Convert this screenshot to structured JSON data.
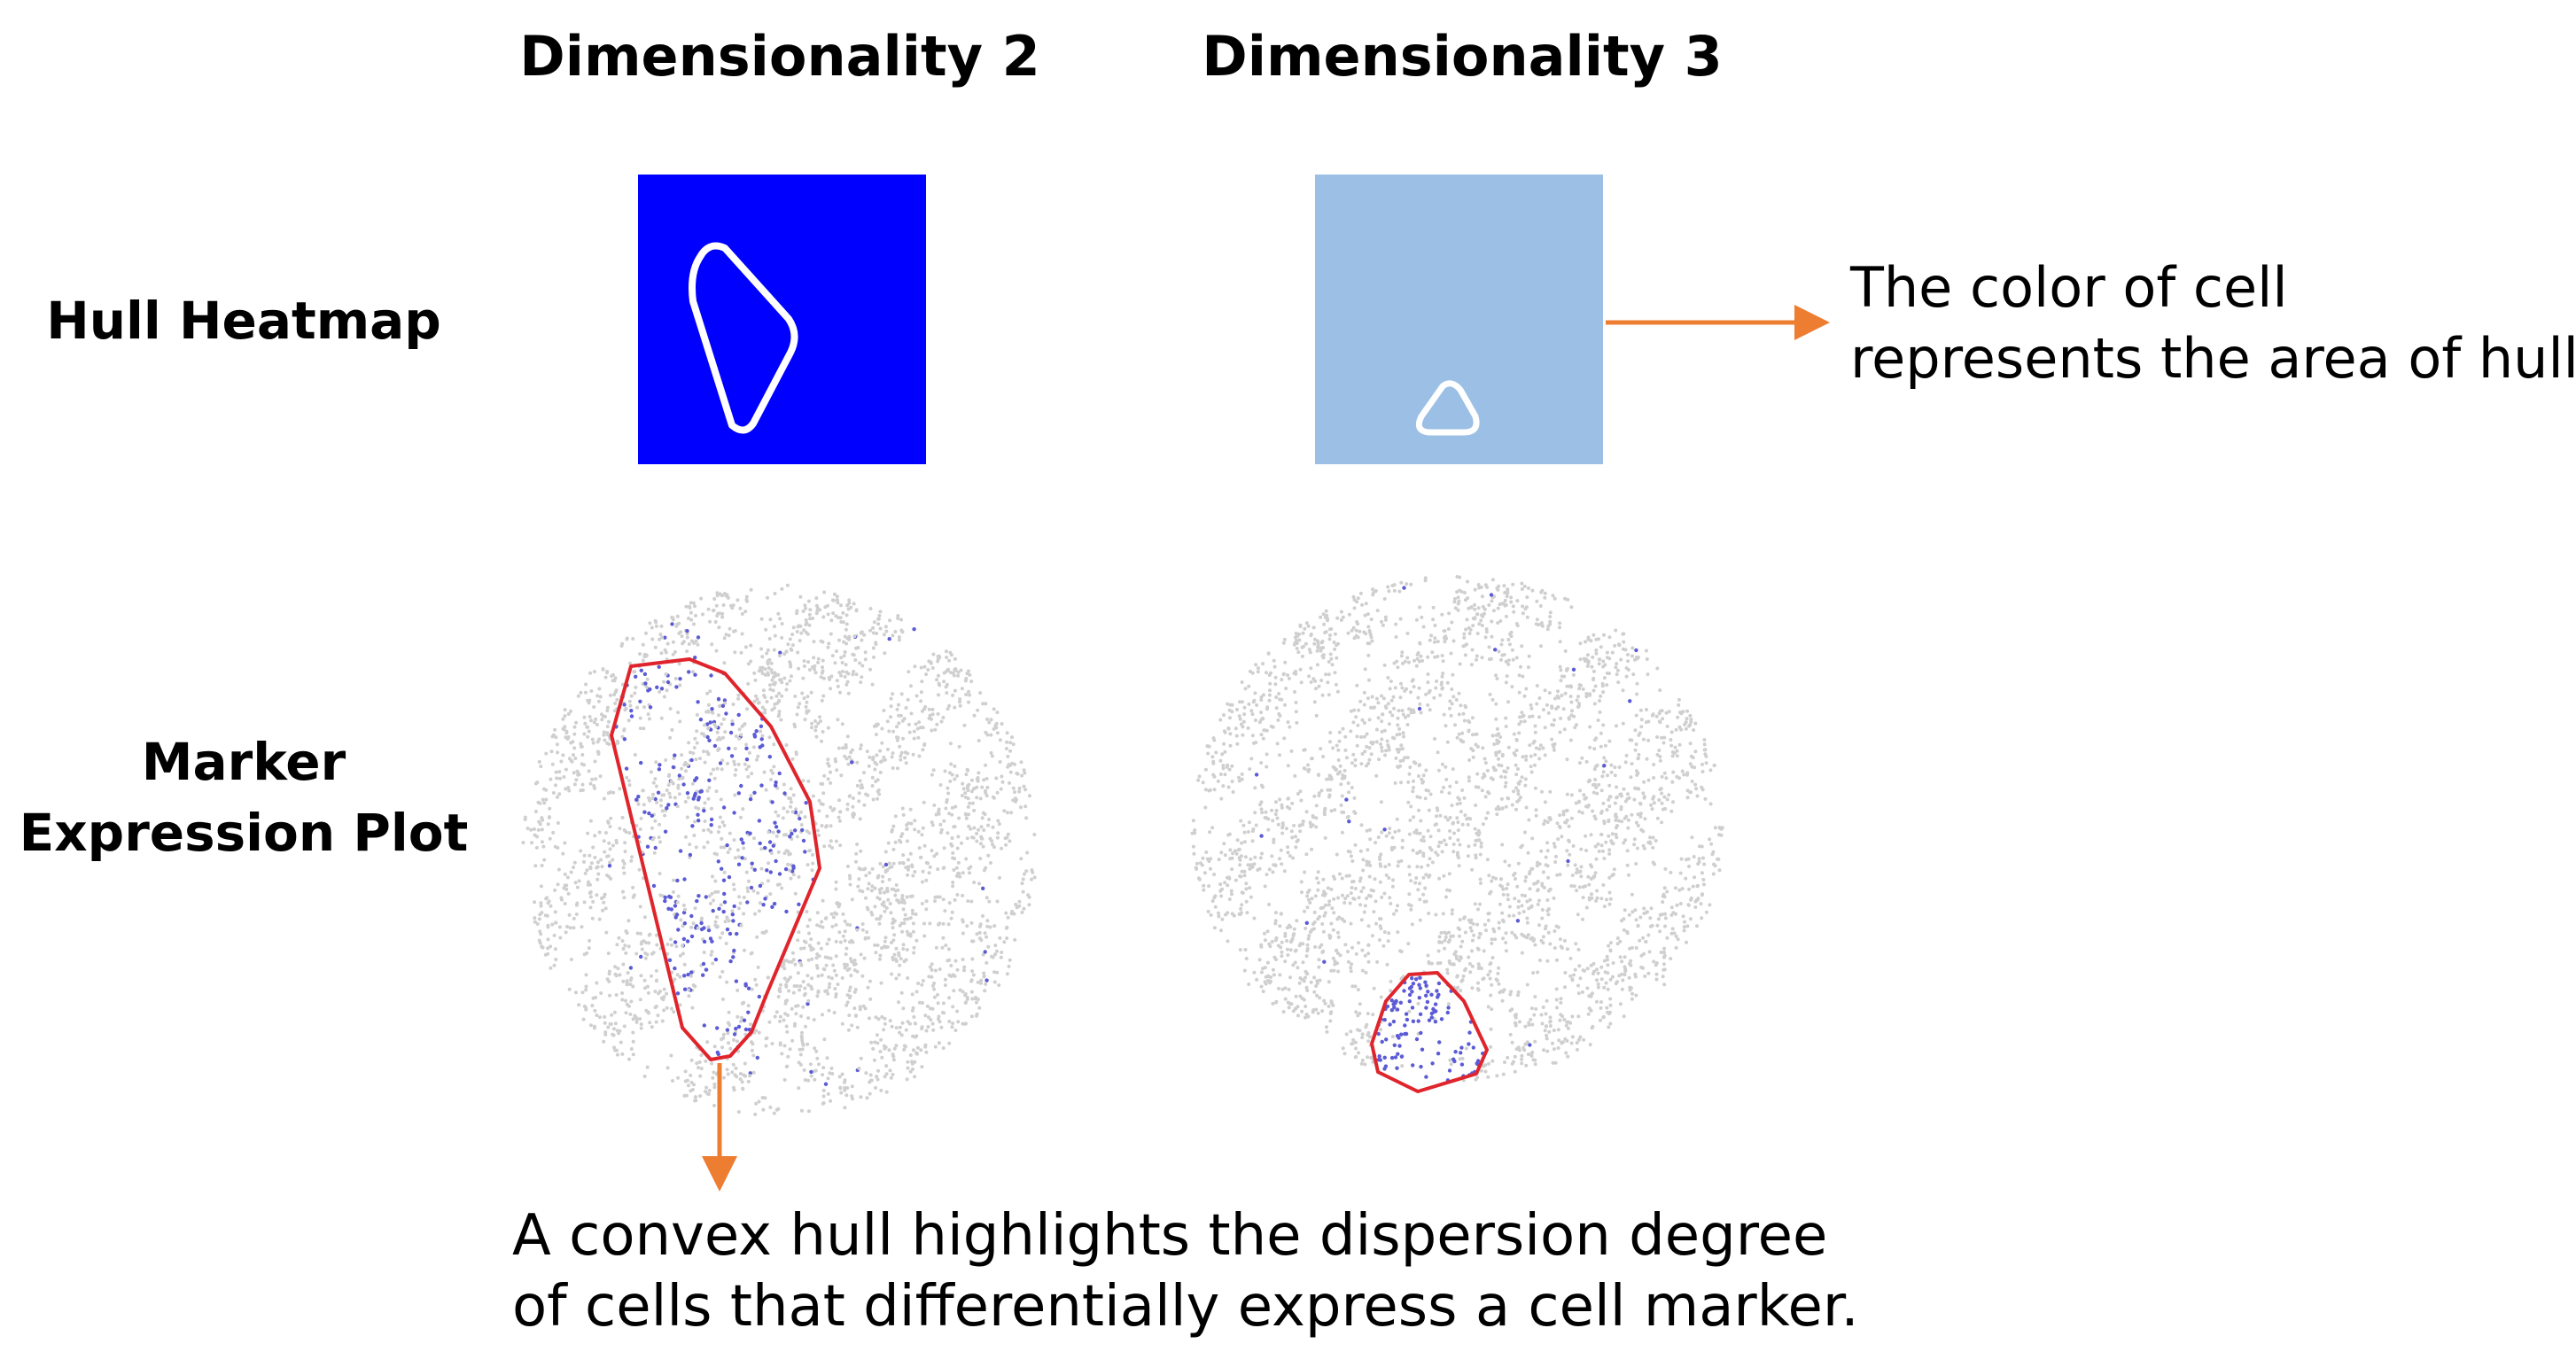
{
  "columns": {
    "dim2": "Dimensionality 2",
    "dim3": "Dimensionality 3"
  },
  "rows": {
    "hull_heatmap": "Hull Heatmap",
    "marker_expression_line1": "Marker",
    "marker_expression_line2": "Expression Plot"
  },
  "annotations": {
    "right_line1": "The color of cell",
    "right_line2": "represents the area of hull.",
    "bottom_line1": "A convex hull highlights the dispersion degree",
    "bottom_line2": "of cells that differentially express a cell marker."
  },
  "colors": {
    "heatmap_dim2": "#0000ff",
    "heatmap_dim3": "#9bbfe5",
    "hull_outline_heatmap": "#ffffff",
    "hull_outline_plot": "#e0242b",
    "cells_background": "#cfcfcf",
    "cells_expressing": "#5b5bd6",
    "arrow": "#ed7d31"
  }
}
